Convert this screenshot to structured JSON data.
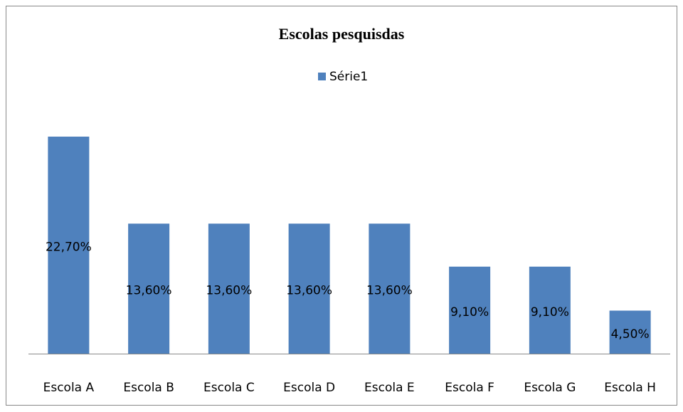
{
  "chart_data": {
    "type": "bar",
    "title": "Escolas pesquisdas",
    "categories": [
      "Escola A",
      "Escola B",
      "Escola C",
      "Escola D",
      "Escola E",
      "Escola F",
      "Escola G",
      "Escola H"
    ],
    "series": [
      {
        "name": "Série1",
        "color": "#4f81bd",
        "values": [
          22.7,
          13.6,
          13.6,
          13.6,
          13.6,
          9.1,
          9.1,
          4.5
        ],
        "value_labels": [
          "22,70%",
          "13,60%",
          "13,60%",
          "13,60%",
          "13,60%",
          "9,10%",
          "9,10%",
          "4,50%"
        ]
      }
    ],
    "legend": "top"
  }
}
